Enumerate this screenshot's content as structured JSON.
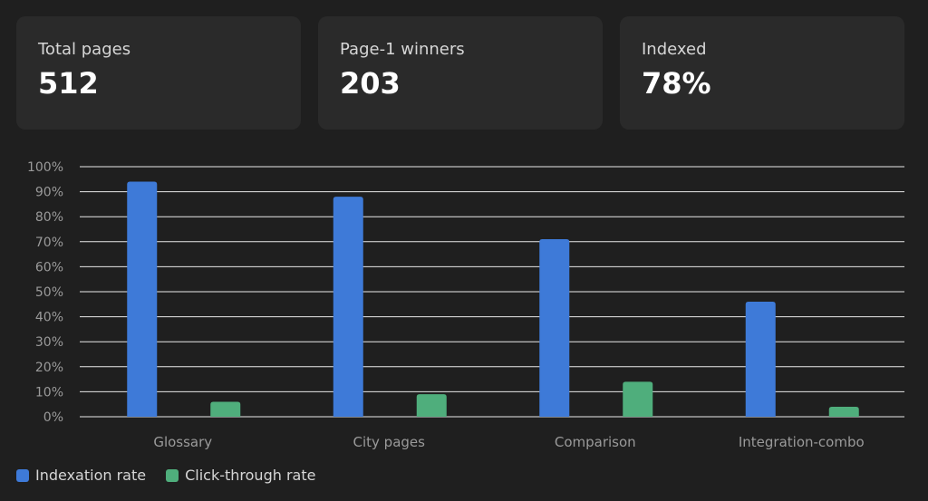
{
  "stats": [
    {
      "label": "Total pages",
      "value": "512"
    },
    {
      "label": "Page-1 winners",
      "value": "203"
    },
    {
      "label": "Indexed",
      "value": "78%"
    }
  ],
  "chart_data": {
    "type": "bar",
    "categories": [
      "Glossary",
      "City pages",
      "Comparison",
      "Integration-combo"
    ],
    "series": [
      {
        "name": "Indexation rate",
        "color": "#3e7ad8",
        "values": [
          94,
          88,
          71,
          46
        ]
      },
      {
        "name": "Click-through rate",
        "color": "#4fae7c",
        "values": [
          6,
          9,
          14,
          4
        ]
      }
    ],
    "ylim": [
      0,
      100
    ],
    "yticks": [
      "0%",
      "10%",
      "20%",
      "30%",
      "40%",
      "50%",
      "60%",
      "70%",
      "80%",
      "90%",
      "100%"
    ],
    "grid": true,
    "legend": "bottom-left",
    "colors": {
      "grid": "#e8e8e8",
      "tick_text": "#9a9a9a"
    }
  }
}
